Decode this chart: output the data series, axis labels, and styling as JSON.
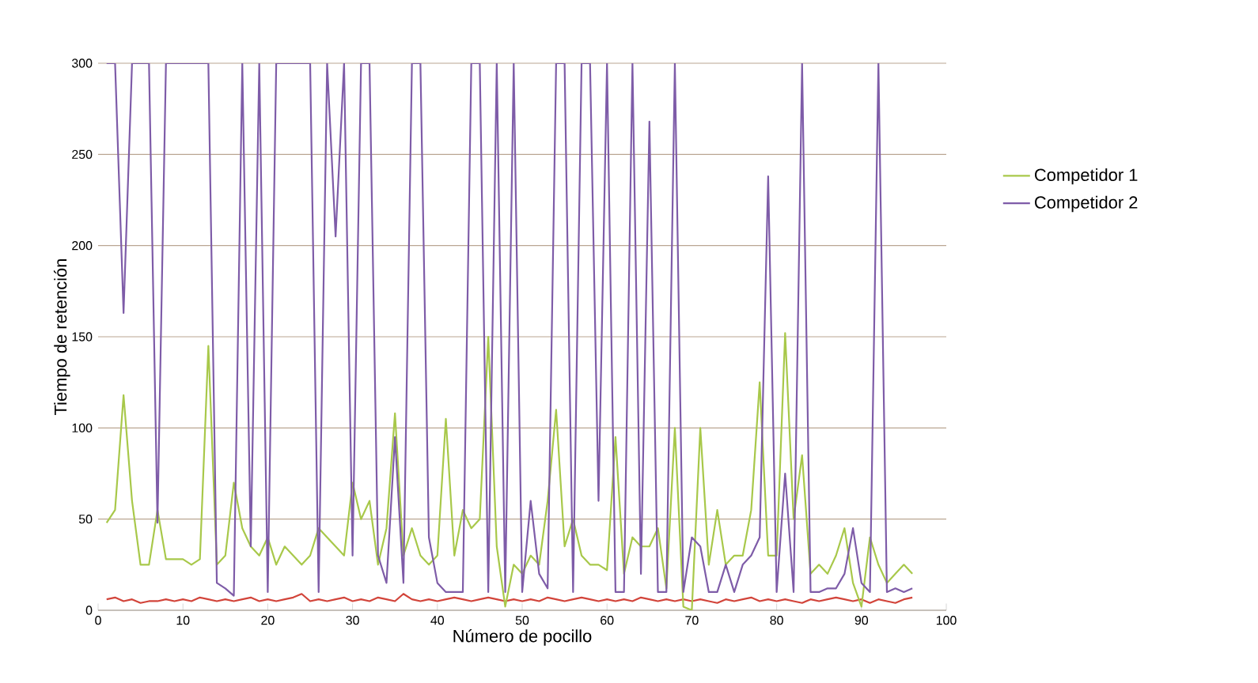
{
  "chart_data": {
    "type": "line",
    "xlabel": "Número de pocillo",
    "ylabel": "Tiempo de retención",
    "xlim": [
      0,
      100
    ],
    "ylim": [
      0,
      300
    ],
    "xticks": [
      0,
      10,
      20,
      30,
      40,
      50,
      60,
      70,
      80,
      90,
      100
    ],
    "yticks": [
      0,
      50,
      100,
      150,
      200,
      250,
      300
    ],
    "grid": "y",
    "legend": "right",
    "marker": "none",
    "line_style": "solid",
    "x": [
      1,
      2,
      3,
      4,
      5,
      6,
      7,
      8,
      9,
      10,
      11,
      12,
      13,
      14,
      15,
      16,
      17,
      18,
      19,
      20,
      21,
      22,
      23,
      24,
      25,
      26,
      27,
      28,
      29,
      30,
      31,
      32,
      33,
      34,
      35,
      36,
      37,
      38,
      39,
      40,
      41,
      42,
      43,
      44,
      45,
      46,
      47,
      48,
      49,
      50,
      51,
      52,
      53,
      54,
      55,
      56,
      57,
      58,
      59,
      60,
      61,
      62,
      63,
      64,
      65,
      66,
      67,
      68,
      69,
      70,
      71,
      72,
      73,
      74,
      75,
      76,
      77,
      78,
      79,
      80,
      81,
      82,
      83,
      84,
      85,
      86,
      87,
      88,
      89,
      90,
      91,
      92,
      93,
      94,
      95,
      96
    ],
    "series": [
      {
        "color": "#d2443a",
        "values": [
          6,
          7,
          5,
          6,
          4,
          5,
          5,
          6,
          5,
          6,
          5,
          7,
          6,
          5,
          6,
          5,
          6,
          7,
          5,
          6,
          5,
          6,
          7,
          9,
          5,
          6,
          5,
          6,
          7,
          5,
          6,
          5,
          7,
          6,
          5,
          9,
          6,
          5,
          6,
          5,
          6,
          7,
          6,
          5,
          6,
          7,
          6,
          5,
          6,
          5,
          6,
          5,
          7,
          6,
          5,
          6,
          7,
          6,
          5,
          6,
          5,
          6,
          5,
          7,
          6,
          5,
          6,
          5,
          6,
          5,
          6,
          5,
          4,
          6,
          5,
          6,
          7,
          5,
          6,
          5,
          6,
          5,
          4,
          6,
          5,
          6,
          7,
          6,
          5,
          6,
          4,
          6,
          5,
          4,
          6,
          7
        ]
      },
      {
        "name": "Competidor 1",
        "color": "#a8c84a",
        "values": [
          48,
          55,
          118,
          60,
          25,
          25,
          55,
          28,
          28,
          28,
          25,
          28,
          145,
          25,
          30,
          70,
          45,
          35,
          30,
          40,
          25,
          35,
          30,
          25,
          30,
          45,
          40,
          35,
          30,
          70,
          50,
          60,
          25,
          45,
          108,
          30,
          45,
          30,
          25,
          30,
          105,
          30,
          55,
          45,
          50,
          150,
          35,
          2,
          25,
          20,
          30,
          25,
          60,
          110,
          35,
          50,
          30,
          25,
          25,
          22,
          95,
          20,
          40,
          35,
          35,
          45,
          12,
          100,
          2,
          0,
          100,
          25,
          55,
          25,
          30,
          30,
          55,
          125,
          30,
          30,
          152,
          50,
          85,
          20,
          25,
          20,
          30,
          45,
          15,
          2,
          40,
          25,
          15,
          20,
          25,
          20
        ]
      },
      {
        "name": "Competidor 2",
        "color": "#7e5ca8",
        "values": [
          300,
          300,
          163,
          300,
          300,
          300,
          48,
          300,
          300,
          300,
          300,
          300,
          300,
          15,
          12,
          8,
          300,
          35,
          300,
          10,
          300,
          300,
          300,
          300,
          300,
          10,
          300,
          205,
          300,
          30,
          300,
          300,
          30,
          15,
          95,
          15,
          300,
          300,
          40,
          15,
          10,
          10,
          10,
          300,
          300,
          10,
          300,
          10,
          300,
          10,
          60,
          20,
          12,
          300,
          300,
          10,
          300,
          300,
          60,
          300,
          10,
          10,
          300,
          20,
          268,
          10,
          10,
          300,
          10,
          40,
          35,
          10,
          10,
          25,
          10,
          25,
          30,
          40,
          238,
          10,
          75,
          10,
          300,
          10,
          10,
          12,
          12,
          20,
          45,
          15,
          10,
          300,
          10,
          12,
          10,
          12
        ]
      }
    ]
  }
}
